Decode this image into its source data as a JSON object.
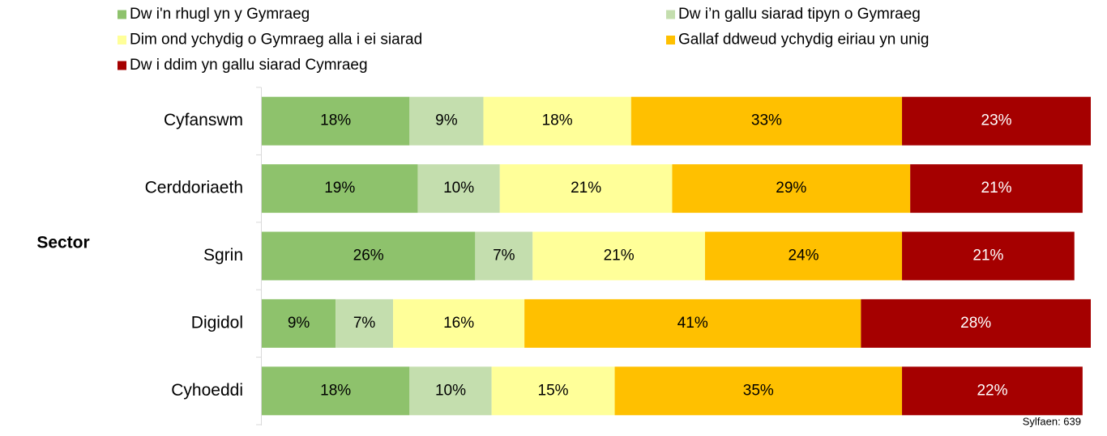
{
  "chart_data": {
    "type": "stacked-bar-horizontal",
    "categories": [
      "Cyfanswm",
      "Cerddoriaeth",
      "Sgrin",
      "Digidol",
      "Cyhoeddi"
    ],
    "axis_label": "Sector",
    "note": "Sylfaen: 639",
    "xlim": [
      0,
      101
    ],
    "series": [
      {
        "name": "Dw i'n rhugl yn y Gymraeg",
        "color": "#8ec26c",
        "values": [
          18,
          19,
          26,
          9,
          18
        ],
        "value_labels": [
          "18%",
          "19%",
          "26%",
          "9%",
          "18%"
        ]
      },
      {
        "name": "Dw i’n gallu siarad tipyn o Gymraeg",
        "color": "#c4deae",
        "values": [
          9,
          10,
          7,
          7,
          10
        ],
        "value_labels": [
          "9%",
          "10%",
          "7%",
          "7%",
          "10%"
        ]
      },
      {
        "name": "Dim ond ychydig o Gymraeg alla i ei siarad",
        "color": "#ffff99",
        "values": [
          18,
          21,
          21,
          16,
          15
        ],
        "value_labels": [
          "18%",
          "21%",
          "21%",
          "16%",
          "15%"
        ]
      },
      {
        "name": "Gallaf ddweud ychydig eiriau yn unig",
        "color": "#ffc000",
        "values": [
          33,
          29,
          24,
          41,
          35
        ],
        "value_labels": [
          "33%",
          "29%",
          "24%",
          "41%",
          "35%"
        ]
      },
      {
        "name": "Dw i ddim yn gallu siarad Cymraeg",
        "color": "#a50000",
        "values": [
          23,
          21,
          21,
          28,
          22
        ],
        "value_labels": [
          "23%",
          "21%",
          "21%",
          "28%",
          "22%"
        ]
      }
    ]
  }
}
